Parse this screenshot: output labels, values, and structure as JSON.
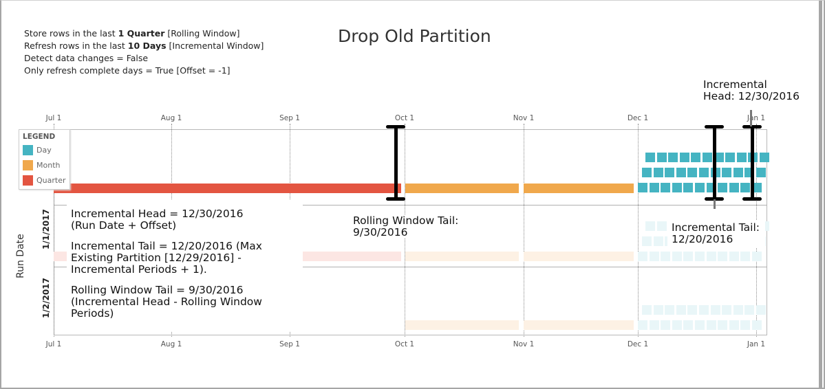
{
  "title": "Drop Old Partition",
  "settings": [
    {
      "pre": "Store rows in the last ",
      "bold": "1 Quarter",
      "post": " [Rolling Window]"
    },
    {
      "pre": "Refresh rows in the last ",
      "bold": "10 Days",
      "post": " [Incremental Window]"
    },
    {
      "pre": "Detect data changes = False",
      "bold": "",
      "post": ""
    },
    {
      "pre": "Only refresh complete days = True [Offset = -1]",
      "bold": "",
      "post": ""
    }
  ],
  "x_ticks": [
    "Jul 1",
    "Aug 1",
    "Sep 1",
    "Oct 1",
    "Nov 1",
    "Dec 1",
    "Jan 1"
  ],
  "y_axis_label": "Run Date",
  "rows": [
    "1/1/2017",
    "1/2/2017"
  ],
  "legend": {
    "title": "LEGEND",
    "items": [
      {
        "label": "Day",
        "color": "#45b4c2"
      },
      {
        "label": "Month",
        "color": "#f0a84c"
      },
      {
        "label": "Quarter",
        "color": "#e35541"
      }
    ]
  },
  "notes": [
    "Incremental Head = 12/30/2016 (Run Date + Offset)",
    "Incremental Tail = 12/20/2016 (Max Existing Partition [12/29/2016] - Incremental Periods + 1).",
    "Rolling Window Tail = 9/30/2016 (Incremental Head - Rolling Window Periods)"
  ],
  "callouts": {
    "incremental_head": "Incremental Head: 12/30/2016",
    "rolling_tail": "Rolling Window Tail: 9/30/2016",
    "incremental_tail": "Incremental Tail: 12/20/2016"
  }
}
